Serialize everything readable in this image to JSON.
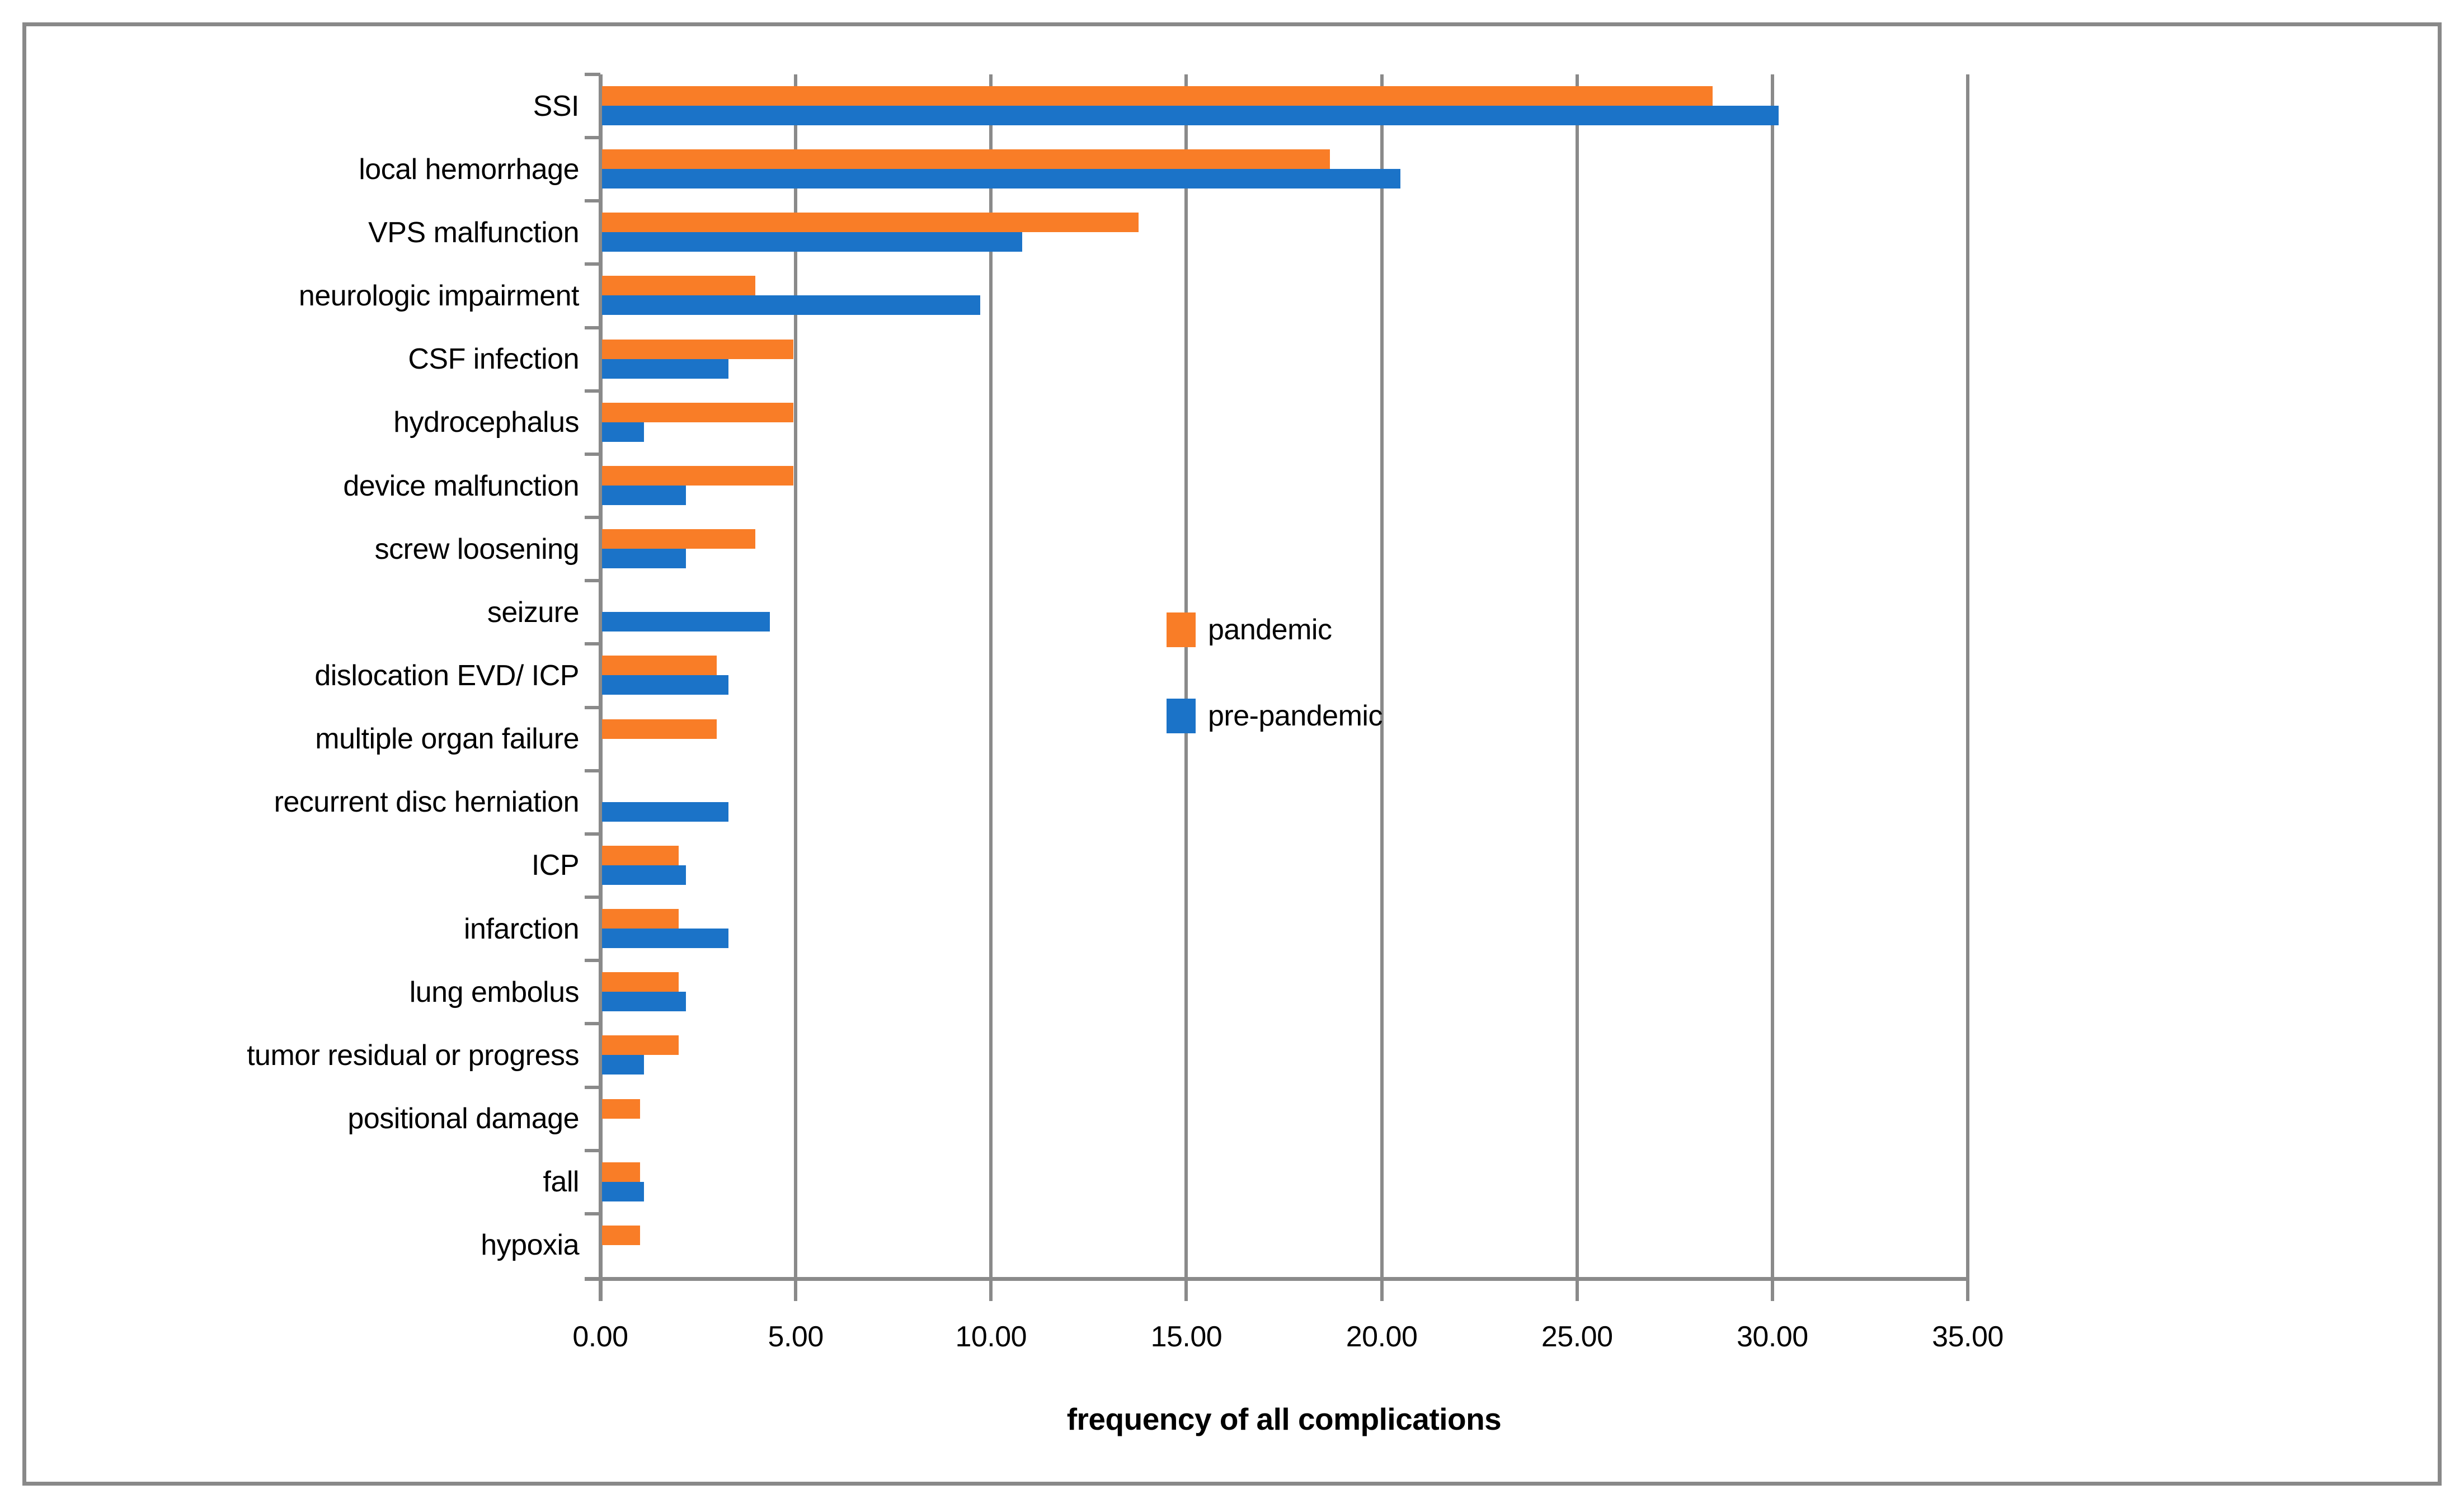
{
  "chart_data": {
    "type": "bar",
    "orientation": "horizontal",
    "xlabel": "frequency of all complications",
    "categories": [
      "SSI",
      "local hemorrhage",
      "VPS malfunction",
      "neurologic impairment",
      "CSF infection",
      "hydrocephalus",
      "device malfunction",
      "screw loosening",
      "seizure",
      "dislocation EVD/ ICP",
      "multiple organ failure",
      "recurrent disc herniation",
      "ICP",
      "infarction",
      "lung embolus",
      "tumor residual or progress",
      "positional damage",
      "fall",
      "hypoxia"
    ],
    "series": [
      {
        "name": "pandemic",
        "color": "#F97D27",
        "values": [
          28.43,
          18.63,
          13.73,
          3.92,
          4.9,
          4.9,
          4.9,
          3.92,
          0,
          2.94,
          2.94,
          0,
          1.96,
          1.96,
          1.96,
          1.96,
          0.98,
          0.98,
          0.98
        ]
      },
      {
        "name": "pre-pandemic",
        "color": "#1B73C8",
        "values": [
          30.11,
          20.43,
          10.75,
          9.68,
          3.23,
          1.08,
          2.15,
          2.15,
          4.3,
          3.23,
          0,
          3.23,
          2.15,
          3.23,
          2.15,
          1.08,
          0,
          1.08,
          0
        ]
      }
    ],
    "x_ticks": [
      "0.00",
      "5.00",
      "10.00",
      "15.00",
      "20.00",
      "25.00",
      "30.00",
      "35.00"
    ],
    "xlim": [
      0,
      35
    ],
    "grid": true,
    "axis_color": "#8a8a8a",
    "legend_position": "inside-middle"
  }
}
